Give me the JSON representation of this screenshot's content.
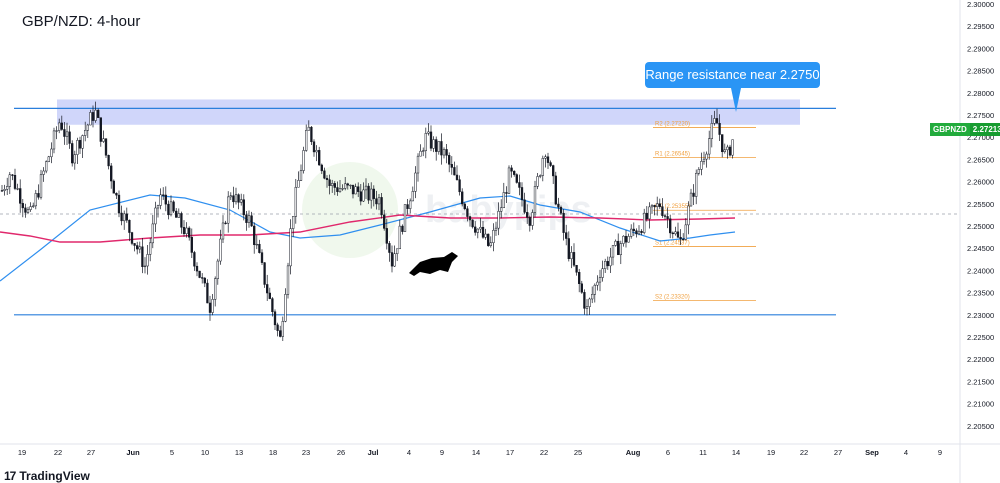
{
  "title": "GBP/NZD: 4-hour",
  "callout": "Range resistance near 2.2750",
  "symbol_badge": {
    "symbol": "GBPNZD",
    "price": "2.27213"
  },
  "branding": {
    "logo_text": "TradingView",
    "watermark": "babypips"
  },
  "colors": {
    "candle": "#131722",
    "ma_blue": "#2f8fef",
    "ma_pink": "#e0286c",
    "range_line": "#2a7fdc",
    "zone": "#aab4f6",
    "pivot": "#f0a040",
    "up": "#22ab3c"
  },
  "chart_data": {
    "type": "candlestick",
    "y_axis": {
      "ticks": [
        "2.30000",
        "2.29500",
        "2.29000",
        "2.28500",
        "2.28000",
        "2.27500",
        "2.27000",
        "2.26500",
        "2.26000",
        "2.25500",
        "2.25000",
        "2.24500",
        "2.24000",
        "2.23500",
        "2.23000",
        "2.22500",
        "2.22000",
        "2.21500",
        "2.21000",
        "2.20500"
      ],
      "ylim": [
        2.2035,
        2.3017
      ]
    },
    "x_axis": {
      "ticks": [
        "19",
        "22",
        "27",
        "Jun",
        "5",
        "10",
        "13",
        "18",
        "23",
        "26",
        "Jul",
        "4",
        "9",
        "14",
        "17",
        "22",
        "25",
        "Aug",
        "6",
        "11",
        "14",
        "19",
        "22",
        "27",
        "Sep",
        "4",
        "9"
      ]
    },
    "resistance_zone": [
      2.2728,
      2.2785
    ],
    "support_line": 2.23,
    "resistance_line": 2.2765,
    "pivots": [
      {
        "label": "R2 (2.27220)",
        "value": 2.2722
      },
      {
        "label": "R1 (2.26545)",
        "value": 2.26545
      },
      {
        "label": "PP (2.25355)",
        "value": 2.25355
      },
      {
        "label": "S1 (2.24537)",
        "value": 2.24537
      },
      {
        "label": "S2 (2.23320)",
        "value": 2.2332
      }
    ],
    "last_price": 2.27213
  }
}
